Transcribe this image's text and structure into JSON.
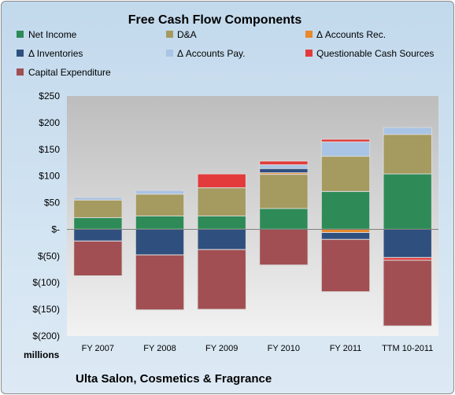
{
  "chart_data": {
    "type": "bar",
    "stacked": true,
    "title": "Free Cash Flow Components",
    "units_label": "millions",
    "company": "Ulta Salon, Cosmetics & Fragrance",
    "legend_position": "top",
    "grid": false,
    "categories": [
      "FY 2007",
      "FY 2008",
      "FY 2009",
      "FY 2010",
      "FY 2011",
      "TTM 10-2011"
    ],
    "y_ticks": [
      "$250",
      "$200",
      "$150",
      "$100",
      "$50",
      "$-",
      "$(50)",
      "$(100)",
      "$(150)",
      "$(200)"
    ],
    "ylim": [
      -200,
      250
    ],
    "series": [
      {
        "name": "Net Income",
        "color": "#2e8b57",
        "values": [
          22,
          25,
          25,
          39,
          71,
          104
        ]
      },
      {
        "name": "D&A",
        "color": "#a59a5f",
        "values": [
          33,
          41,
          53,
          64,
          66,
          74
        ]
      },
      {
        "name": "Δ Accounts Rec.",
        "color": "#e8892a",
        "values": [
          0,
          0,
          0,
          3,
          -6,
          0
        ]
      },
      {
        "name": "Δ Inventories",
        "color": "#2f4f7f",
        "values": [
          -22,
          -48,
          -38,
          8,
          -13,
          -53
        ]
      },
      {
        "name": "Δ Accounts Pay.",
        "color": "#a9c4e4",
        "values": [
          5,
          7,
          0,
          7,
          27,
          13
        ]
      },
      {
        "name": "Questionable Cash Sources",
        "color": "#e33b3b",
        "values": [
          0,
          0,
          26,
          7,
          5,
          -5
        ]
      },
      {
        "name": "Capital Expenditure",
        "color": "#a14f52",
        "values": [
          -65,
          -103,
          -112,
          -67,
          -98,
          -123
        ]
      }
    ]
  }
}
